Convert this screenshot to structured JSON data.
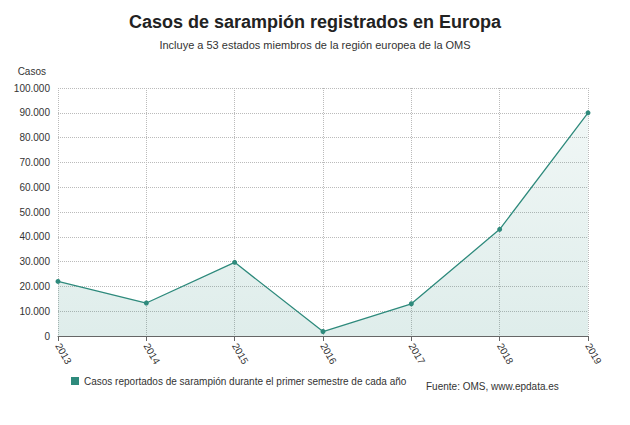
{
  "chart_data": {
    "type": "line",
    "title": "Casos de sarampión registrados en Europa",
    "subtitle": "Incluye a 53 estados miembros de la región europea de la OMS",
    "ylabel": "Casos",
    "annotations": [
      "Fuente: OMS, www.epdata.es"
    ],
    "categories": [
      "2013",
      "2014",
      "2015",
      "2016",
      "2017",
      "2018",
      "2019"
    ],
    "series": [
      {
        "name": "Casos reportados de sarampión durante el primer semestre de cada año",
        "color": "#2e8a7c",
        "values": [
          22000,
          13300,
          29700,
          1800,
          13000,
          43000,
          90000
        ]
      }
    ],
    "ylim": [
      0,
      100000
    ],
    "yticks": [
      0,
      {
        "value": 10000,
        "label": "10.000"
      },
      {
        "value": 20000,
        "label": "20.000"
      },
      {
        "value": 30000,
        "label": "30.000"
      },
      {
        "value": 40000,
        "label": "40.000"
      },
      {
        "value": 50000,
        "label": "50.000"
      },
      {
        "value": 60000,
        "label": "60.000"
      },
      {
        "value": 70000,
        "label": "70.000"
      },
      {
        "value": 80000,
        "label": "80.000"
      },
      {
        "value": 90000,
        "label": "90.000"
      },
      {
        "value": 100000,
        "label": "100.000"
      }
    ],
    "grid": true,
    "legend": "bottom left",
    "marker": "circle"
  }
}
